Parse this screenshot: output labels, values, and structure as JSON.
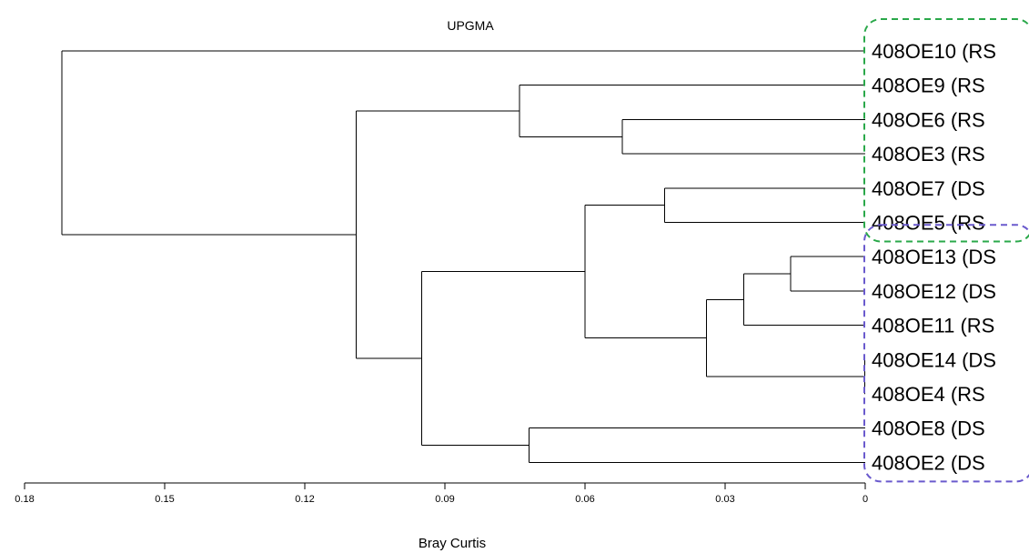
{
  "chart_data": {
    "type": "dendrogram",
    "title": "UPGMA",
    "xlabel": "Bray Curtis",
    "xlim": [
      0.18,
      0
    ],
    "xticks": [
      {
        "value": 0.18,
        "label": "0.18"
      },
      {
        "value": 0.15,
        "label": "0.15"
      },
      {
        "value": 0.12,
        "label": "0.12"
      },
      {
        "value": 0.09,
        "label": "0.09"
      },
      {
        "value": 0.06,
        "label": "0.06"
      },
      {
        "value": 0.03,
        "label": "0.03"
      },
      {
        "value": 0,
        "label": "0"
      }
    ],
    "leaves": [
      "408OE10 (RS",
      "408OE9 (RS",
      "408OE6 (RS",
      "408OE3 (RS",
      "408OE7 (DS",
      "408OE5 (RS",
      "408OE13 (DS",
      "408OE12 (DS",
      "408OE11 (RS",
      "408OE14 (DS",
      "408OE4 (RS",
      "408OE8 (DS",
      "408OE2 (DS"
    ],
    "merges": [
      {
        "id": "m1",
        "height": 0.0001,
        "children": [
          "408OE14 (DS",
          "408OE4 (RS"
        ]
      },
      {
        "id": "m2",
        "height": 0.016,
        "children": [
          "408OE13 (DS",
          "408OE12 (DS"
        ]
      },
      {
        "id": "m3",
        "height": 0.026,
        "children": [
          "m2",
          "408OE11 (RS"
        ]
      },
      {
        "id": "m4",
        "height": 0.034,
        "children": [
          "m3",
          "m1"
        ]
      },
      {
        "id": "m5",
        "height": 0.043,
        "children": [
          "408OE7 (DS",
          "408OE5 (RS"
        ]
      },
      {
        "id": "m6",
        "height": 0.052,
        "children": [
          "408OE6 (RS",
          "408OE3 (RS"
        ]
      },
      {
        "id": "m7",
        "height": 0.06,
        "children": [
          "m5",
          "m4"
        ]
      },
      {
        "id": "m8",
        "height": 0.072,
        "children": [
          "408OE8 (DS",
          "408OE2 (DS"
        ]
      },
      {
        "id": "m9",
        "height": 0.074,
        "children": [
          "408OE9 (RS",
          "m6"
        ]
      },
      {
        "id": "m10",
        "height": 0.095,
        "children": [
          "m7",
          "m8"
        ]
      },
      {
        "id": "m11",
        "height": 0.109,
        "children": [
          "m9",
          "m10"
        ]
      },
      {
        "id": "m12",
        "height": 0.172,
        "children": [
          "408OE10 (RS",
          "m11"
        ]
      }
    ],
    "groups": [
      {
        "color": "#2aa84a",
        "members": [
          "408OE10 (RS",
          "408OE9 (RS",
          "408OE6 (RS",
          "408OE3 (RS",
          "408OE7 (DS",
          "408OE5 (RS"
        ]
      },
      {
        "color": "#6a5acd",
        "members": [
          "408OE13 (DS",
          "408OE12 (DS",
          "408OE11 (RS",
          "408OE14 (DS",
          "408OE4 (RS",
          "408OE8 (DS",
          "408OE2 (DS"
        ]
      }
    ]
  }
}
